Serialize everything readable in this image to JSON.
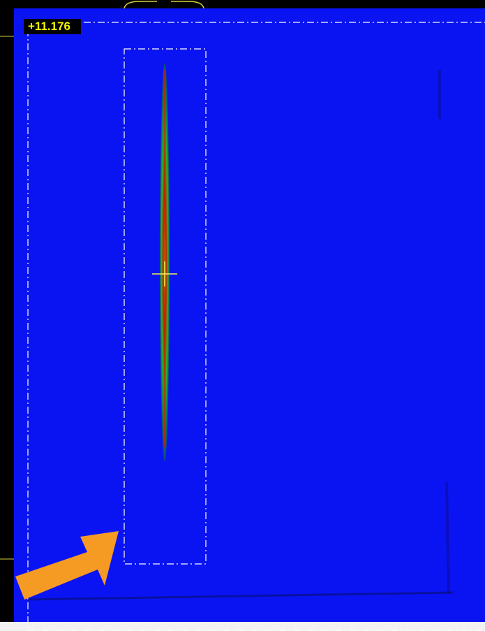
{
  "overlay": {
    "readout": "+11.176"
  }
}
